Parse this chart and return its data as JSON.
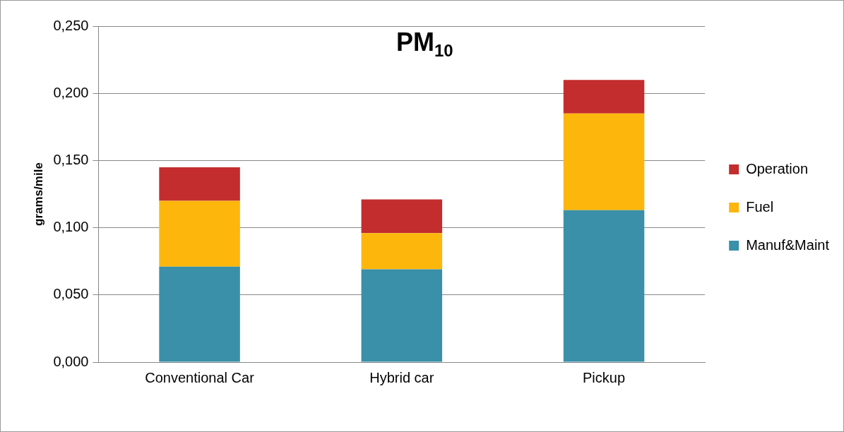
{
  "chart_data": {
    "type": "bar",
    "title": "PM$_{10}$",
    "ylabel": "grams/mile",
    "categories": [
      "Conventional Car",
      "Hybrid car",
      "Pickup"
    ],
    "series": [
      {
        "name": "Manuf&Maint",
        "color": "#3a90a8",
        "values": [
          0.071,
          0.069,
          0.113
        ]
      },
      {
        "name": "Fuel",
        "color": "#fdb60c",
        "values": [
          0.049,
          0.027,
          0.072
        ]
      },
      {
        "name": "Operation",
        "color": "#c32d2e",
        "values": [
          0.025,
          0.025,
          0.025
        ]
      }
    ],
    "stacked": true,
    "ylim": [
      0,
      0.25
    ],
    "yticks": [
      {
        "value": 0,
        "label": "0,000"
      },
      {
        "value": 0.05,
        "label": "0,050"
      },
      {
        "value": 0.1,
        "label": "0,100"
      },
      {
        "value": 0.15,
        "label": "0,150"
      },
      {
        "value": 0.2,
        "label": "0,200"
      },
      {
        "value": 0.25,
        "label": "0,250"
      }
    ],
    "grid": "y",
    "legend": "right"
  }
}
